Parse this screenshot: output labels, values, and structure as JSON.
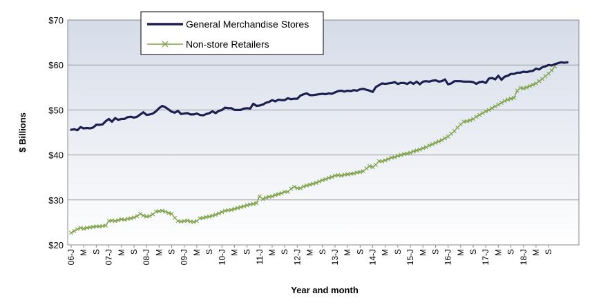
{
  "chart_data": {
    "type": "line",
    "xlabel": "Year and month",
    "ylabel": "$ Billions",
    "ylim": [
      20,
      70
    ],
    "y_ticks": [
      "$20",
      "$30",
      "$40",
      "$50",
      "$60",
      "$70"
    ],
    "y_tick_values": [
      20,
      30,
      40,
      50,
      60,
      70
    ],
    "x_ticks": [
      "06-J",
      "M",
      "S",
      "07-J",
      "M",
      "S",
      "08-J",
      "M",
      "S",
      "09-J",
      "M",
      "S",
      "10-J",
      "M",
      "S",
      "11-J",
      "M",
      "S",
      "12-J",
      "M",
      "S",
      "13-J",
      "M",
      "S",
      "14-J",
      "M",
      "S",
      "15-J",
      "M",
      "S",
      "16-J",
      "M",
      "S",
      "17-J",
      "M",
      "S",
      "18-J",
      "M",
      "S"
    ],
    "x_tick_months": [
      0,
      4,
      8,
      12,
      16,
      20,
      24,
      28,
      32,
      36,
      40,
      44,
      48,
      52,
      56,
      60,
      64,
      68,
      72,
      76,
      80,
      84,
      88,
      92,
      96,
      100,
      104,
      108,
      112,
      116,
      120,
      124,
      128,
      132,
      136,
      140,
      144,
      148,
      152
    ],
    "x_start": "2006-01",
    "grid": true,
    "legend_position": "top-left",
    "series": [
      {
        "name": "General Merchandise Stores",
        "color": "#1a1f4f",
        "marker": "none",
        "values": [
          45.6,
          45.7,
          45.5,
          46.2,
          45.9,
          46.0,
          45.9,
          46.1,
          46.7,
          46.7,
          46.8,
          47.5,
          48.0,
          47.4,
          48.2,
          47.8,
          48.0,
          48.0,
          48.4,
          48.5,
          48.3,
          48.5,
          49.0,
          49.5,
          48.9,
          49.0,
          49.2,
          49.7,
          50.4,
          50.9,
          50.6,
          50.1,
          49.6,
          49.4,
          49.8,
          49.1,
          49.2,
          49.3,
          49.0,
          49.0,
          49.2,
          48.9,
          48.8,
          49.1,
          49.3,
          49.7,
          49.3,
          49.8,
          50.0,
          50.5,
          50.4,
          50.4,
          50.0,
          50.0,
          50.0,
          50.3,
          50.4,
          50.3,
          51.4,
          50.9,
          51.0,
          51.2,
          51.6,
          51.8,
          52.2,
          51.9,
          52.3,
          52.2,
          52.2,
          52.6,
          52.4,
          52.5,
          52.5,
          53.2,
          53.5,
          53.7,
          53.3,
          53.3,
          53.4,
          53.5,
          53.6,
          53.5,
          53.7,
          53.6,
          53.9,
          54.2,
          54.3,
          54.1,
          54.3,
          54.2,
          54.4,
          54.3,
          54.6,
          54.7,
          54.5,
          54.3,
          54.0,
          55.1,
          55.5,
          55.9,
          55.8,
          55.9,
          56.0,
          56.2,
          55.8,
          56.0,
          56.0,
          55.8,
          56.2,
          55.8,
          56.3,
          55.7,
          56.3,
          56.4,
          56.3,
          56.5,
          56.6,
          56.3,
          56.4,
          56.8,
          55.7,
          55.9,
          56.4,
          56.4,
          56.4,
          56.3,
          56.3,
          56.3,
          56.2,
          55.8,
          56.2,
          56.3,
          56.0,
          57.0,
          57.1,
          56.8,
          57.6,
          56.7,
          57.4,
          57.6,
          58.0,
          58.0,
          58.3,
          58.3,
          58.5,
          58.4,
          58.6,
          58.7,
          59.2,
          59.0,
          59.5,
          59.7,
          60.0,
          59.9,
          60.2,
          60.4,
          60.6,
          60.5,
          60.6
        ]
      },
      {
        "name": "Non-store Retailers",
        "color": "#7ba044",
        "marker": "x",
        "values": [
          22.7,
          23.1,
          23.5,
          23.8,
          23.6,
          23.8,
          23.9,
          24.0,
          24.1,
          24.1,
          24.2,
          24.3,
          25.3,
          25.4,
          25.3,
          25.5,
          25.7,
          25.6,
          25.8,
          25.9,
          26.1,
          26.4,
          26.9,
          26.5,
          26.3,
          26.4,
          26.8,
          27.4,
          27.5,
          27.6,
          27.4,
          27.1,
          26.9,
          26.0,
          25.3,
          25.2,
          25.3,
          25.4,
          25.2,
          25.1,
          25.3,
          25.9,
          26.0,
          26.2,
          26.3,
          26.5,
          26.7,
          27.0,
          27.3,
          27.6,
          27.7,
          27.8,
          28.0,
          28.2,
          28.4,
          28.6,
          28.8,
          29.0,
          29.1,
          29.3,
          30.8,
          30.2,
          30.5,
          30.7,
          30.8,
          31.1,
          31.3,
          31.5,
          31.8,
          31.8,
          32.5,
          32.9,
          32.6,
          32.6,
          33.0,
          33.2,
          33.4,
          33.6,
          33.8,
          34.1,
          34.4,
          34.6,
          34.9,
          35.1,
          35.4,
          35.5,
          35.4,
          35.6,
          35.7,
          35.8,
          35.9,
          36.1,
          36.2,
          36.4,
          37.0,
          37.5,
          37.3,
          37.8,
          38.6,
          38.6,
          38.8,
          39.1,
          39.4,
          39.5,
          39.8,
          40.0,
          40.2,
          40.3,
          40.5,
          40.8,
          41.0,
          41.2,
          41.5,
          41.7,
          42.1,
          42.4,
          42.7,
          43.0,
          43.3,
          43.7,
          44.1,
          44.7,
          45.3,
          46.1,
          46.8,
          47.4,
          47.5,
          47.7,
          48.0,
          48.5,
          48.9,
          49.3,
          49.7,
          50.0,
          50.4,
          50.8,
          51.2,
          51.6,
          52.0,
          52.3,
          52.5,
          52.7,
          54.3,
          54.9,
          54.8,
          55.0,
          55.3,
          55.6,
          55.9,
          56.4,
          56.9,
          57.5,
          58.1,
          58.8,
          59.7
        ]
      }
    ]
  }
}
